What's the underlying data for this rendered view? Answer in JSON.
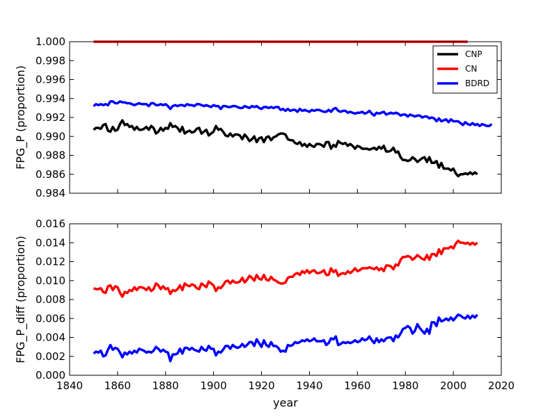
{
  "figure": {
    "shared_xlabel": "year",
    "x_ticks": [
      1840,
      1860,
      1880,
      1900,
      1920,
      1940,
      1960,
      1980,
      2000,
      2020
    ]
  },
  "chart_data": [
    {
      "type": "line",
      "title": "",
      "ylabel": "FPG_P (proportion)",
      "xlim": [
        1840,
        2020
      ],
      "ylim": [
        0.984,
        1.0
      ],
      "y_ticks": [
        0.984,
        0.986,
        0.988,
        0.99,
        0.992,
        0.994,
        0.996,
        0.998,
        1.0
      ],
      "y_tick_decimals": 3,
      "x_tick_labels_shown": false,
      "legend": {
        "position": "top-right",
        "entries": [
          "CNP",
          "CN",
          "BDRD"
        ]
      },
      "series": [
        {
          "name": "CNP",
          "color": "#000000",
          "x_start": 1850,
          "x_step": 1,
          "values": [
            0.9907,
            0.9909,
            0.9909,
            0.9908,
            0.9912,
            0.9913,
            0.9906,
            0.9905,
            0.991,
            0.9906,
            0.9907,
            0.9913,
            0.9917,
            0.9912,
            0.9913,
            0.991,
            0.9911,
            0.9907,
            0.991,
            0.9907,
            0.9907,
            0.9908,
            0.991,
            0.9907,
            0.9911,
            0.9909,
            0.9903,
            0.9905,
            0.9909,
            0.9906,
            0.9909,
            0.9908,
            0.9914,
            0.991,
            0.9911,
            0.9909,
            0.9905,
            0.991,
            0.9903,
            0.9905,
            0.9906,
            0.9904,
            0.9905,
            0.9908,
            0.9909,
            0.9903,
            0.9905,
            0.9907,
            0.9901,
            0.9903,
            0.9905,
            0.9911,
            0.9907,
            0.9908,
            0.9905,
            0.9901,
            0.99,
            0.9903,
            0.99,
            0.9902,
            0.9902,
            0.9901,
            0.9897,
            0.9902,
            0.9899,
            0.9895,
            0.9897,
            0.99,
            0.9894,
            0.9898,
            0.9899,
            0.9894,
            0.9899,
            0.99,
            0.9896,
            0.9899,
            0.99,
            0.9902,
            0.9903,
            0.9903,
            0.9902,
            0.9897,
            0.9896,
            0.9896,
            0.9893,
            0.9892,
            0.9894,
            0.989,
            0.9892,
            0.9889,
            0.9892,
            0.989,
            0.9889,
            0.9892,
            0.9892,
            0.9891,
            0.9889,
            0.9894,
            0.9894,
            0.9887,
            0.9891,
            0.9889,
            0.9895,
            0.9893,
            0.9892,
            0.9893,
            0.989,
            0.9892,
            0.989,
            0.9887,
            0.989,
            0.9889,
            0.9887,
            0.9887,
            0.9887,
            0.9886,
            0.9887,
            0.9888,
            0.9886,
            0.9889,
            0.9887,
            0.989,
            0.9884,
            0.9884,
            0.9885,
            0.9888,
            0.9883,
            0.9884,
            0.9878,
            0.9875,
            0.9875,
            0.9874,
            0.9875,
            0.9878,
            0.9876,
            0.9873,
            0.9875,
            0.9877,
            0.9878,
            0.9873,
            0.9878,
            0.9872,
            0.9872,
            0.9874,
            0.9867,
            0.9872,
            0.9866,
            0.9866,
            0.9866,
            0.9864,
            0.9866,
            0.9861,
            0.9858,
            0.986,
            0.986,
            0.9861,
            0.986,
            0.9862,
            0.986,
            0.9862,
            0.986
          ]
        },
        {
          "name": "CN",
          "color": "#ff0000",
          "x_start": 1850,
          "x_step": 1,
          "values": [
            1.0,
            1.0,
            1.0,
            1.0,
            1.0,
            1.0,
            1.0,
            1.0,
            1.0,
            1.0,
            1.0,
            1.0,
            1.0,
            1.0,
            1.0,
            1.0,
            1.0,
            1.0,
            1.0,
            1.0,
            1.0,
            1.0,
            1.0,
            1.0,
            1.0,
            1.0,
            1.0,
            1.0,
            1.0,
            1.0,
            1.0,
            1.0,
            1.0,
            1.0,
            1.0,
            1.0,
            1.0,
            1.0,
            1.0,
            1.0,
            1.0,
            1.0,
            1.0,
            1.0,
            1.0,
            1.0,
            1.0,
            1.0,
            1.0,
            1.0,
            1.0,
            1.0,
            1.0,
            1.0,
            1.0,
            1.0,
            1.0,
            1.0,
            1.0,
            1.0,
            1.0,
            1.0,
            1.0,
            1.0,
            1.0,
            1.0,
            1.0,
            1.0,
            1.0,
            1.0,
            1.0,
            1.0,
            1.0,
            1.0,
            1.0,
            1.0,
            1.0,
            1.0,
            1.0,
            1.0,
            1.0,
            1.0,
            1.0,
            1.0,
            1.0,
            1.0,
            1.0,
            1.0,
            1.0,
            1.0,
            1.0,
            1.0,
            1.0,
            1.0,
            1.0,
            1.0,
            1.0,
            1.0,
            1.0,
            1.0,
            1.0,
            1.0,
            1.0,
            1.0,
            1.0,
            1.0,
            1.0,
            1.0,
            1.0,
            1.0,
            1.0,
            1.0,
            1.0,
            1.0,
            1.0,
            1.0,
            1.0,
            1.0,
            1.0,
            1.0,
            1.0,
            1.0,
            1.0,
            1.0,
            1.0,
            1.0,
            1.0,
            1.0,
            1.0,
            1.0,
            1.0,
            1.0,
            1.0,
            1.0,
            1.0,
            1.0,
            1.0,
            1.0,
            1.0,
            1.0,
            1.0,
            1.0,
            1.0,
            1.0,
            1.0,
            1.0,
            1.0,
            1.0,
            1.0,
            1.0,
            1.0,
            1.0,
            1.0,
            1.0,
            1.0,
            1.0,
            1.0
          ]
        },
        {
          "name": "BDRD",
          "color": "#0000ff",
          "x_start": 1850,
          "x_step": 1,
          "values": [
            0.9932,
            0.9934,
            0.9933,
            0.9934,
            0.9933,
            0.9934,
            0.9933,
            0.9937,
            0.9937,
            0.9935,
            0.9935,
            0.9937,
            0.9936,
            0.9936,
            0.9935,
            0.9935,
            0.9934,
            0.9933,
            0.9934,
            0.9935,
            0.9934,
            0.9934,
            0.9934,
            0.9932,
            0.9935,
            0.9935,
            0.9933,
            0.9933,
            0.9934,
            0.9933,
            0.9934,
            0.9932,
            0.9929,
            0.9932,
            0.9933,
            0.9932,
            0.9933,
            0.9933,
            0.9932,
            0.9934,
            0.9933,
            0.9933,
            0.9932,
            0.9934,
            0.9934,
            0.9933,
            0.9932,
            0.9933,
            0.9932,
            0.9931,
            0.9933,
            0.9932,
            0.9932,
            0.9929,
            0.9932,
            0.9932,
            0.9931,
            0.9931,
            0.9932,
            0.9932,
            0.9931,
            0.993,
            0.993,
            0.9932,
            0.9931,
            0.993,
            0.9932,
            0.9931,
            0.9932,
            0.993,
            0.9929,
            0.9931,
            0.9931,
            0.993,
            0.9931,
            0.993,
            0.9931,
            0.9931,
            0.9928,
            0.9929,
            0.9927,
            0.9929,
            0.9927,
            0.9928,
            0.9928,
            0.9926,
            0.9929,
            0.9927,
            0.9928,
            0.9927,
            0.9926,
            0.9928,
            0.9927,
            0.9928,
            0.9928,
            0.9927,
            0.9926,
            0.9926,
            0.9928,
            0.9926,
            0.9929,
            0.993,
            0.9927,
            0.9926,
            0.9927,
            0.9927,
            0.9925,
            0.9926,
            0.9925,
            0.9924,
            0.9925,
            0.9925,
            0.9926,
            0.9924,
            0.9925,
            0.9927,
            0.9924,
            0.9922,
            0.9925,
            0.9924,
            0.9925,
            0.9926,
            0.9923,
            0.9924,
            0.9925,
            0.9924,
            0.9925,
            0.9924,
            0.9922,
            0.9923,
            0.9923,
            0.9921,
            0.9923,
            0.9922,
            0.9921,
            0.9922,
            0.9922,
            0.992,
            0.9921,
            0.9921,
            0.9919,
            0.992,
            0.9919,
            0.9916,
            0.9919,
            0.9916,
            0.9917,
            0.9918,
            0.9915,
            0.9918,
            0.9916,
            0.9916,
            0.9916,
            0.9914,
            0.9912,
            0.9915,
            0.9913,
            0.9912,
            0.9914,
            0.9912,
            0.9913,
            0.9911,
            0.9913,
            0.9912,
            0.9911,
            0.9911,
            0.9913
          ]
        }
      ]
    },
    {
      "type": "line",
      "title": "",
      "xlabel": "year",
      "ylabel": "FPG_P_diff (proportion)",
      "xlim": [
        1840,
        2020
      ],
      "ylim": [
        0.0,
        0.016
      ],
      "y_ticks": [
        0.0,
        0.002,
        0.004,
        0.006,
        0.008,
        0.01,
        0.012,
        0.014,
        0.016
      ],
      "y_tick_decimals": 3,
      "x_tick_labels_shown": true,
      "series": [
        {
          "name": "CN",
          "color": "#ff0000",
          "x_start": 1850,
          "x_step": 1,
          "values": [
            0.0092,
            0.0091,
            0.0091,
            0.0092,
            0.0088,
            0.0087,
            0.0094,
            0.0095,
            0.009,
            0.0094,
            0.0093,
            0.0087,
            0.0083,
            0.0088,
            0.0087,
            0.009,
            0.0089,
            0.0093,
            0.009,
            0.0093,
            0.0093,
            0.0092,
            0.009,
            0.0093,
            0.0089,
            0.0091,
            0.0097,
            0.0095,
            0.0091,
            0.0094,
            0.0091,
            0.0092,
            0.0086,
            0.009,
            0.0089,
            0.0091,
            0.0095,
            0.009,
            0.0097,
            0.0095,
            0.0094,
            0.0096,
            0.0095,
            0.0092,
            0.0091,
            0.0097,
            0.0095,
            0.0093,
            0.0099,
            0.0097,
            0.0095,
            0.0089,
            0.0093,
            0.0092,
            0.0095,
            0.0099,
            0.01,
            0.0097,
            0.01,
            0.0098,
            0.0098,
            0.0099,
            0.0103,
            0.0098,
            0.0101,
            0.0105,
            0.0103,
            0.01,
            0.0106,
            0.0102,
            0.0101,
            0.0106,
            0.0101,
            0.01,
            0.0104,
            0.0101,
            0.01,
            0.0098,
            0.0097,
            0.0097,
            0.0098,
            0.0103,
            0.0104,
            0.0104,
            0.0107,
            0.0108,
            0.0106,
            0.011,
            0.0108,
            0.0111,
            0.0108,
            0.011,
            0.0111,
            0.0108,
            0.0108,
            0.0109,
            0.0111,
            0.0106,
            0.0106,
            0.0113,
            0.0109,
            0.0111,
            0.0105,
            0.0107,
            0.0108,
            0.0107,
            0.011,
            0.0108,
            0.011,
            0.0113,
            0.011,
            0.0111,
            0.0113,
            0.0113,
            0.0113,
            0.0114,
            0.0113,
            0.0112,
            0.0114,
            0.0111,
            0.0113,
            0.011,
            0.0116,
            0.0116,
            0.0115,
            0.0112,
            0.0117,
            0.0116,
            0.0122,
            0.0125,
            0.0125,
            0.0126,
            0.0125,
            0.0122,
            0.0124,
            0.0127,
            0.0125,
            0.0123,
            0.0122,
            0.0127,
            0.0122,
            0.0128,
            0.0128,
            0.0126,
            0.0133,
            0.0128,
            0.0134,
            0.0134,
            0.0134,
            0.0136,
            0.0134,
            0.0139,
            0.0142,
            0.014,
            0.014,
            0.0139,
            0.014,
            0.0138,
            0.014,
            0.0138,
            0.014
          ]
        },
        {
          "name": "BDRD",
          "color": "#0000ff",
          "x_start": 1850,
          "x_step": 1,
          "values": [
            0.0023,
            0.0025,
            0.0024,
            0.0026,
            0.002,
            0.0021,
            0.0027,
            0.0032,
            0.0027,
            0.0029,
            0.0028,
            0.0024,
            0.0019,
            0.0024,
            0.0022,
            0.0025,
            0.0023,
            0.0026,
            0.0024,
            0.0028,
            0.0027,
            0.0026,
            0.0024,
            0.0025,
            0.0024,
            0.0026,
            0.003,
            0.0028,
            0.0025,
            0.0027,
            0.0025,
            0.0024,
            0.0015,
            0.0022,
            0.0022,
            0.0023,
            0.0028,
            0.0023,
            0.0029,
            0.0029,
            0.0027,
            0.0029,
            0.0027,
            0.0026,
            0.0025,
            0.003,
            0.0027,
            0.0026,
            0.0031,
            0.0028,
            0.0028,
            0.0021,
            0.0025,
            0.0024,
            0.0027,
            0.0031,
            0.0031,
            0.0028,
            0.0032,
            0.003,
            0.0029,
            0.003,
            0.0033,
            0.003,
            0.0032,
            0.0035,
            0.0035,
            0.0031,
            0.0038,
            0.0034,
            0.003,
            0.0037,
            0.0032,
            0.003,
            0.0035,
            0.0031,
            0.0031,
            0.0029,
            0.0025,
            0.0026,
            0.0025,
            0.0032,
            0.0031,
            0.0032,
            0.0035,
            0.0034,
            0.0035,
            0.0037,
            0.0036,
            0.0038,
            0.0036,
            0.0037,
            0.0039,
            0.0036,
            0.0036,
            0.0036,
            0.0037,
            0.0032,
            0.0034,
            0.0039,
            0.0038,
            0.0041,
            0.0032,
            0.0033,
            0.0035,
            0.0034,
            0.0035,
            0.0034,
            0.0035,
            0.0037,
            0.0035,
            0.0036,
            0.0039,
            0.0037,
            0.0038,
            0.0041,
            0.0037,
            0.0034,
            0.0039,
            0.0035,
            0.0038,
            0.0036,
            0.0039,
            0.004,
            0.004,
            0.0036,
            0.0042,
            0.004,
            0.0044,
            0.0049,
            0.005,
            0.0052,
            0.005,
            0.0044,
            0.0047,
            0.0054,
            0.005,
            0.0047,
            0.0044,
            0.0049,
            0.0044,
            0.0056,
            0.0056,
            0.0052,
            0.0061,
            0.0057,
            0.0058,
            0.006,
            0.0058,
            0.0061,
            0.0058,
            0.0061,
            0.0064,
            0.0063,
            0.0061,
            0.006,
            0.0063,
            0.006,
            0.0063,
            0.0061,
            0.0064
          ]
        }
      ]
    }
  ]
}
